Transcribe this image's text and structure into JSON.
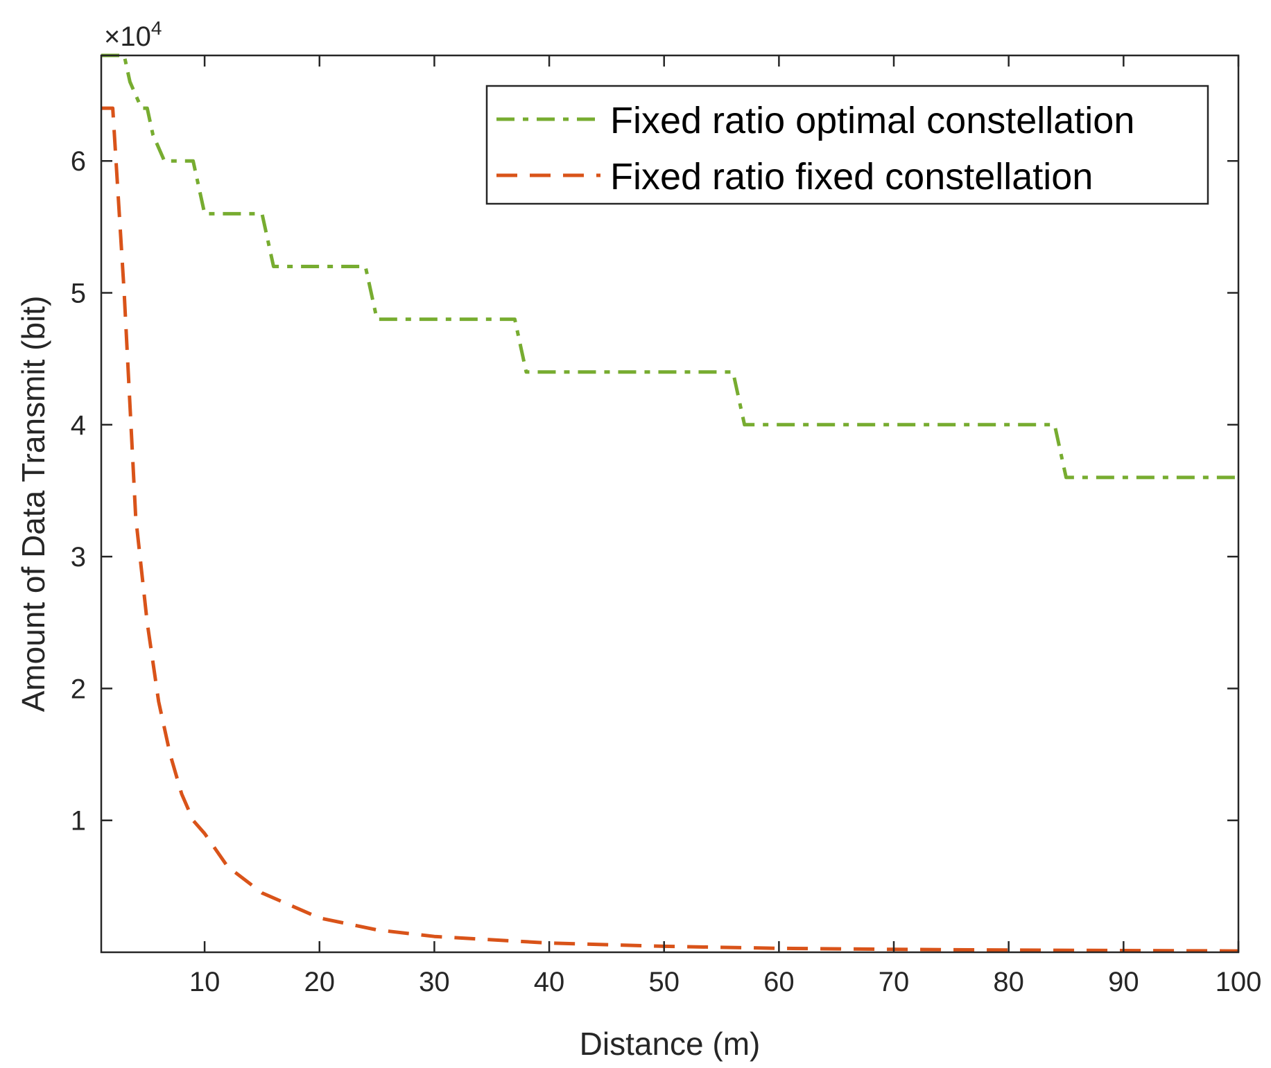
{
  "chart_data": {
    "type": "line",
    "title": "",
    "xlabel": "Distance (m)",
    "ylabel": "Amount of Data Transmit (bit)",
    "y_exponent_label": "×10",
    "y_exponent": "4",
    "xlim": [
      1,
      100
    ],
    "ylim": [
      0,
      68000
    ],
    "x_ticks": [
      10,
      20,
      30,
      40,
      50,
      60,
      70,
      80,
      90,
      100
    ],
    "x_tick_labels": [
      "10",
      "20",
      "30",
      "40",
      "50",
      "60",
      "70",
      "80",
      "90",
      "100"
    ],
    "y_ticks": [
      10000,
      20000,
      30000,
      40000,
      50000,
      60000
    ],
    "y_tick_labels": [
      "1",
      "2",
      "3",
      "4",
      "5",
      "6"
    ],
    "grid": false,
    "legend_position": "top-right",
    "series": [
      {
        "name": "Fixed ratio optimal constellation",
        "color": "#77AC30",
        "line_style": "dash-dot",
        "x": [
          1,
          3,
          3.5,
          4.5,
          5,
          5.5,
          6.5,
          9,
          9.5,
          10,
          15,
          15.5,
          16,
          24,
          24.5,
          25,
          37,
          37.5,
          38,
          56,
          56.5,
          57,
          84,
          84.5,
          85,
          100
        ],
        "y": [
          68000,
          68000,
          66000,
          64000,
          64000,
          62000,
          60000,
          60000,
          58000,
          56000,
          56000,
          54000,
          52000,
          52000,
          50000,
          48000,
          48000,
          46000,
          44000,
          44000,
          42000,
          40000,
          40000,
          38000,
          36000,
          36000
        ]
      },
      {
        "name": "Fixed ratio fixed constellation",
        "color": "#D95319",
        "line_style": "dashed",
        "x": [
          1,
          2,
          3,
          4,
          5,
          6,
          7,
          8,
          9,
          10,
          12,
          15,
          20,
          25,
          30,
          40,
          50,
          60,
          70,
          80,
          90,
          100
        ],
        "y": [
          64000,
          64000,
          50000,
          33000,
          25000,
          19000,
          15000,
          12000,
          10000,
          9000,
          6500,
          4500,
          2600,
          1700,
          1200,
          700,
          450,
          300,
          220,
          170,
          130,
          100
        ]
      }
    ]
  }
}
